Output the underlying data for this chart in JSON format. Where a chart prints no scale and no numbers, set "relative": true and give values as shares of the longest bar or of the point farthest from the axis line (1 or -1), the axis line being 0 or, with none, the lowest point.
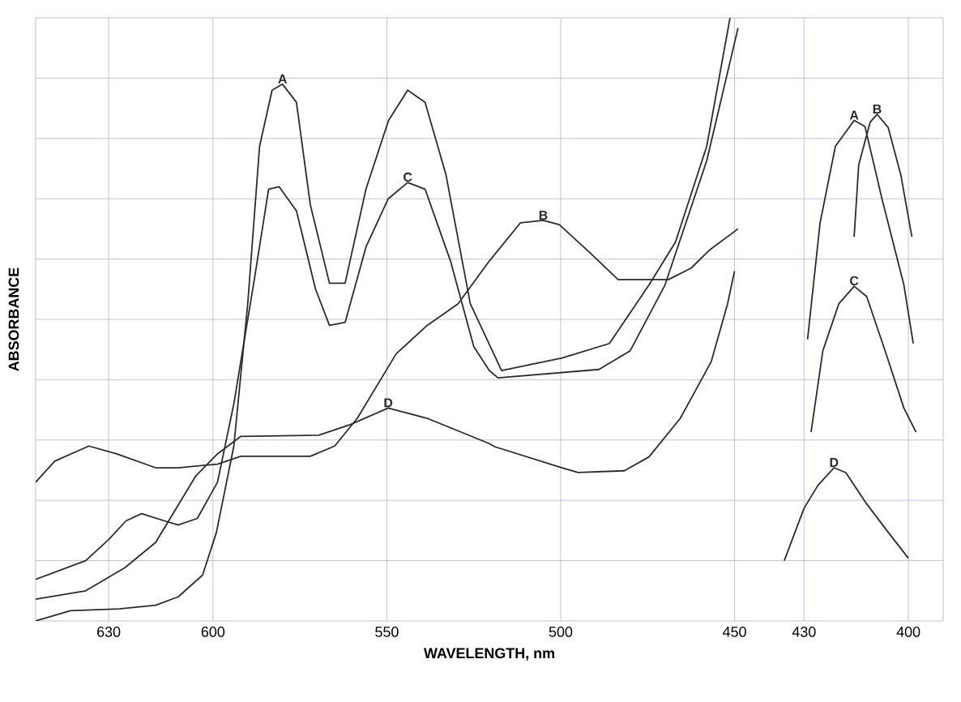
{
  "chart_data": {
    "type": "line",
    "relative": true,
    "xlabel": "WAVELENGTH, nm",
    "ylabel": "ABSORBANCE",
    "xlim": [
      651,
      390
    ],
    "xticks": [
      630,
      600,
      550,
      500,
      450,
      430,
      400
    ],
    "grid": true,
    "marker": "none",
    "line_style": "solid",
    "series": [
      {
        "name": "A",
        "color": "#2b2b2b",
        "x": [
          651,
          641,
          627,
          616.5,
          610,
          603,
          599,
          594,
          590,
          586.6,
          583,
          580,
          576,
          572,
          566.5,
          562,
          556,
          549.5,
          544,
          539,
          533,
          526,
          517,
          499.6,
          486,
          474.6,
          467,
          458,
          451.3,
          440,
          429,
          425.4,
          421,
          415.6,
          412.5,
          407.6,
          401.3,
          398.6
        ],
        "values": [
          0,
          0.017,
          0.02,
          0.026,
          0.04,
          0.076,
          0.147,
          0.29,
          0.526,
          0.787,
          0.88,
          0.89,
          0.86,
          0.69,
          0.56,
          0.56,
          0.716,
          0.83,
          0.88,
          0.86,
          0.74,
          0.526,
          0.415,
          0.436,
          0.46,
          0.557,
          0.628,
          0.787,
          1.0,
          null,
          0.467,
          0.66,
          0.787,
          0.83,
          0.82,
          0.7,
          0.557,
          0.46
        ]
      },
      {
        "name": "B",
        "color": "#2b2b2b",
        "x": [
          651,
          645.5,
          635.7,
          627.7,
          616.5,
          610,
          598.7,
          592,
          572,
          565,
          558.5,
          547.3,
          538.4,
          529.5,
          520.5,
          511.6,
          505,
          500.4,
          491.5,
          483.5,
          469,
          462.5,
          457,
          449,
          430,
          415.6,
          414.3,
          411,
          409,
          405.8,
          402.2,
          399
        ],
        "values": [
          0.23,
          0.265,
          0.29,
          0.277,
          0.254,
          0.254,
          0.26,
          0.273,
          0.273,
          0.29,
          0.336,
          0.443,
          0.49,
          0.526,
          0.597,
          0.66,
          0.664,
          0.657,
          0.61,
          0.566,
          0.566,
          0.585,
          0.616,
          0.65,
          null,
          0.637,
          0.756,
          0.827,
          0.84,
          0.818,
          0.74,
          0.637
        ]
      },
      {
        "name": "C",
        "color": "#2b2b2b",
        "x": [
          651,
          636.6,
          630,
          625,
          620.5,
          614,
          610,
          604.5,
          598.7,
          594,
          588,
          584,
          581,
          576,
          570.5,
          566.5,
          562,
          556,
          549.6,
          544,
          539,
          531.7,
          525,
          520.5,
          518,
          489,
          480,
          470,
          458,
          449,
          440,
          428,
          424.6,
          420,
          415.6,
          412,
          406.7,
          401.3,
          397.8
        ],
        "values": [
          0.069,
          0.1,
          0.135,
          0.166,
          0.178,
          0.166,
          0.159,
          0.17,
          0.23,
          0.36,
          0.57,
          0.716,
          0.72,
          0.68,
          0.55,
          0.49,
          0.495,
          0.62,
          0.7,
          0.727,
          0.716,
          0.597,
          0.455,
          0.415,
          0.403,
          0.417,
          0.448,
          0.557,
          0.763,
          0.983,
          null,
          0.313,
          0.448,
          0.526,
          0.555,
          0.538,
          0.448,
          0.353,
          0.313
        ]
      },
      {
        "name": "D",
        "color": "#2b2b2b",
        "x": [
          651,
          636.6,
          625.4,
          616.5,
          605,
          598.7,
          592,
          569.6,
          560.7,
          549.6,
          538.4,
          520.5,
          519,
          499.6,
          495,
          481.7,
          474.6,
          465.6,
          456.7,
          452,
          450,
          440,
          435.7,
          430,
          426,
          421.4,
          418,
          412,
          405.8,
          400
        ],
        "values": [
          0.036,
          0.05,
          0.088,
          0.13,
          0.24,
          0.277,
          0.306,
          0.308,
          0.325,
          0.353,
          0.336,
          0.294,
          0.289,
          0.254,
          0.246,
          0.249,
          0.272,
          0.336,
          0.43,
          0.526,
          0.58,
          null,
          0.1,
          0.187,
          0.225,
          0.254,
          0.246,
          0.194,
          0.147,
          0.104
        ]
      }
    ]
  }
}
